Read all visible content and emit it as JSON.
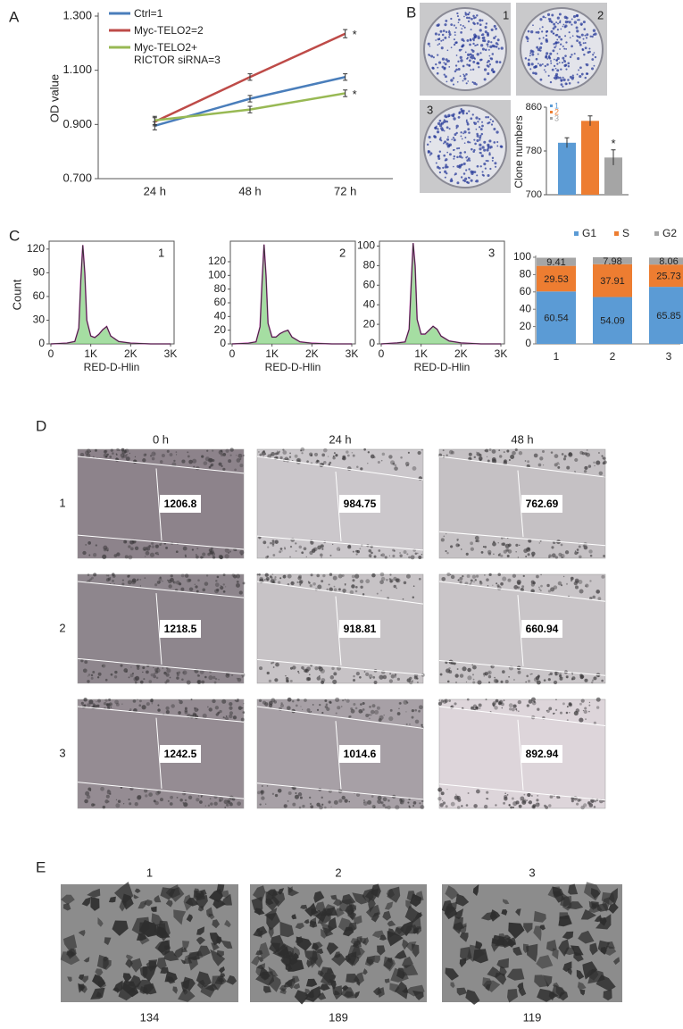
{
  "panel_labels": [
    "A",
    "B",
    "C",
    "D",
    "E"
  ],
  "chart_data": [
    {
      "type": "line",
      "ylabel": "OD value",
      "categories": [
        "24 h",
        "48 h",
        "72 h"
      ],
      "ylim": [
        0.7,
        1.3
      ],
      "yticks": [
        {
          "value": 0.7,
          "label": "0.700"
        },
        {
          "value": 0.9,
          "label": "0.900"
        },
        {
          "value": 1.1,
          "label": "1.100"
        },
        {
          "value": 1.3,
          "label": "1.300"
        }
      ],
      "series": [
        {
          "name": "Ctrl=1",
          "color": "#4a7ebb",
          "values": [
            0.895,
            0.995,
            1.075
          ],
          "errors": [
            0.015,
            0.012,
            0.012
          ]
        },
        {
          "name": "Myc-TELO2=2",
          "color": "#be4b48",
          "values": [
            0.91,
            1.075,
            1.235
          ],
          "errors": [
            0.015,
            0.012,
            0.015
          ]
        },
        {
          "name": "Myc-TELO2+ RICTOR siRNA=3",
          "color": "#98b954",
          "values": [
            0.915,
            0.955,
            1.015
          ],
          "errors": [
            0.015,
            0.012,
            0.012
          ]
        }
      ],
      "annotations": [
        "*",
        "*"
      ]
    },
    {
      "type": "bar",
      "ylabel": "Clone numbers",
      "categories": [
        "1",
        "2",
        "3"
      ],
      "values": [
        795,
        835,
        768
      ],
      "errors": [
        9,
        9,
        14
      ],
      "colors": [
        "#5b9bd5",
        "#ed7d31",
        "#a5a5a5"
      ],
      "ylim": [
        700,
        860
      ],
      "yticks": [
        700,
        780,
        860
      ],
      "annotations": [
        "*"
      ]
    },
    {
      "type": "area",
      "label": "1",
      "ylabel": "Count",
      "xlabel": "RED-D-Hlin",
      "x": [
        0,
        400,
        600,
        700,
        750,
        800,
        850,
        900,
        1000,
        1100,
        1200,
        1300,
        1400,
        1500,
        1700,
        2000,
        2500,
        3000
      ],
      "values": [
        0,
        1,
        3,
        20,
        80,
        125,
        90,
        30,
        10,
        8,
        12,
        18,
        22,
        10,
        3,
        1,
        0,
        0
      ],
      "xlim": [
        0,
        3000
      ],
      "xticks": [
        0,
        {
          "value": 1000,
          "label": "1K"
        },
        {
          "value": 2000,
          "label": "2K"
        },
        {
          "value": 3000,
          "label": "3K"
        }
      ],
      "ylim": [
        0,
        130
      ],
      "yticks": [
        0,
        30,
        60,
        90,
        120
      ]
    },
    {
      "type": "area",
      "label": "2",
      "xlabel": "RED-D-Hlin",
      "x": [
        0,
        400,
        600,
        700,
        750,
        800,
        850,
        900,
        1000,
        1100,
        1200,
        1300,
        1400,
        1500,
        1700,
        2000,
        2500,
        3000
      ],
      "values": [
        0,
        1,
        3,
        25,
        90,
        145,
        100,
        30,
        10,
        10,
        15,
        18,
        20,
        10,
        3,
        1,
        0,
        0
      ],
      "xlim": [
        0,
        3000
      ],
      "xticks": [
        0,
        {
          "value": 1000,
          "label": "1K"
        },
        {
          "value": 2000,
          "label": "2K"
        },
        {
          "value": 3000,
          "label": "3K"
        }
      ],
      "ylim": [
        0,
        150
      ],
      "yticks": [
        0,
        20,
        40,
        60,
        80,
        100,
        120
      ]
    },
    {
      "type": "area",
      "label": "3",
      "xlabel": "RED-D-Hlin",
      "x": [
        0,
        400,
        600,
        700,
        750,
        800,
        850,
        900,
        1000,
        1100,
        1200,
        1300,
        1400,
        1500,
        1700,
        2000,
        2500,
        3000
      ],
      "values": [
        0,
        1,
        2,
        15,
        60,
        103,
        80,
        25,
        10,
        10,
        14,
        18,
        15,
        8,
        3,
        1,
        0,
        0
      ],
      "xlim": [
        0,
        3000
      ],
      "xticks": [
        0,
        {
          "value": 1000,
          "label": "1K"
        },
        {
          "value": 2000,
          "label": "2K"
        },
        {
          "value": 3000,
          "label": "3K"
        }
      ],
      "ylim": [
        0,
        105
      ],
      "yticks": [
        0,
        20,
        40,
        60,
        80,
        100
      ]
    },
    {
      "type": "stacked-bar",
      "categories": [
        "1",
        "2",
        "3"
      ],
      "series": [
        {
          "name": "G1",
          "color": "#5b9bd5",
          "values": [
            60.54,
            54.09,
            65.85
          ]
        },
        {
          "name": "S",
          "color": "#ed7d31",
          "values": [
            29.53,
            37.91,
            25.73
          ]
        },
        {
          "name": "G2",
          "color": "#a5a5a5",
          "values": [
            9.41,
            7.98,
            8.06
          ]
        }
      ],
      "ylim": [
        0,
        100
      ],
      "yticks": [
        0,
        20,
        40,
        60,
        80,
        100
      ]
    }
  ],
  "clone_plates": [
    "1",
    "2",
    "3"
  ],
  "wound": {
    "columns": [
      "0 h",
      "24 h",
      "48 h"
    ],
    "rows": [
      "1",
      "2",
      "3"
    ],
    "widths": [
      [
        1206.8,
        984.75,
        762.69
      ],
      [
        1218.5,
        918.81,
        660.94
      ],
      [
        1242.5,
        1014.6,
        892.94
      ]
    ]
  },
  "invasion": {
    "labels": [
      "1",
      "2",
      "3"
    ],
    "counts": [
      134,
      189,
      119
    ]
  }
}
